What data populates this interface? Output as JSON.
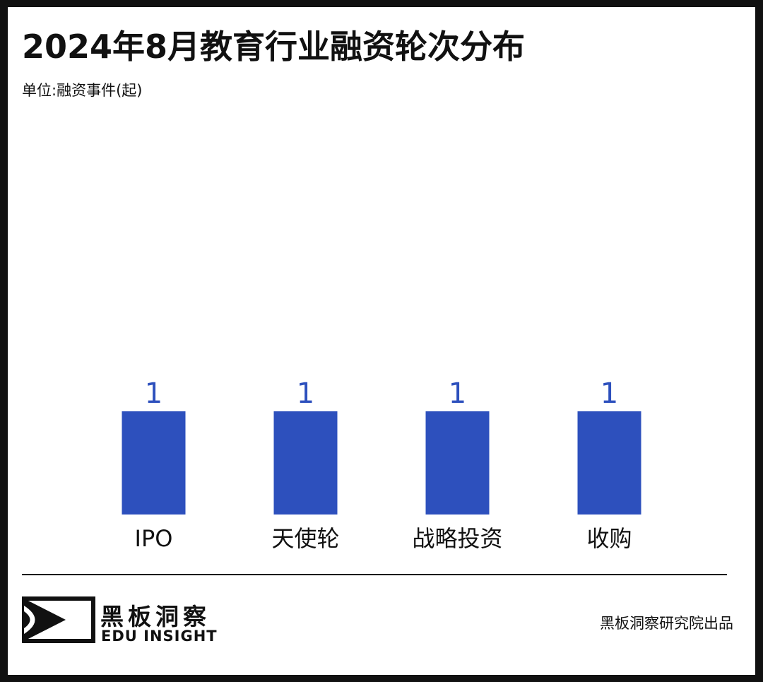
{
  "header": {
    "title": "2024年8月教育行业融资轮次分布",
    "unit": "单位:融资事件(起)"
  },
  "chart_data": {
    "type": "bar",
    "title": "2024年8月教育行业融资轮次分布",
    "unit": "单位:融资事件(起)",
    "categories": [
      "IPO",
      "天使轮",
      "战略投资",
      "收购"
    ],
    "values": [
      1,
      1,
      1,
      1
    ],
    "bar_color": "#2d50bd",
    "label_color": "#2d50bd",
    "grid": false,
    "legend": "none"
  },
  "footer": {
    "brand_cn": "黑板洞察",
    "brand_en": "EDU INSIGHT",
    "credit": "黑板洞察研究院出品"
  },
  "colors": {
    "frame": "#111111",
    "text": "#111111",
    "bar": "#2d50bd"
  }
}
